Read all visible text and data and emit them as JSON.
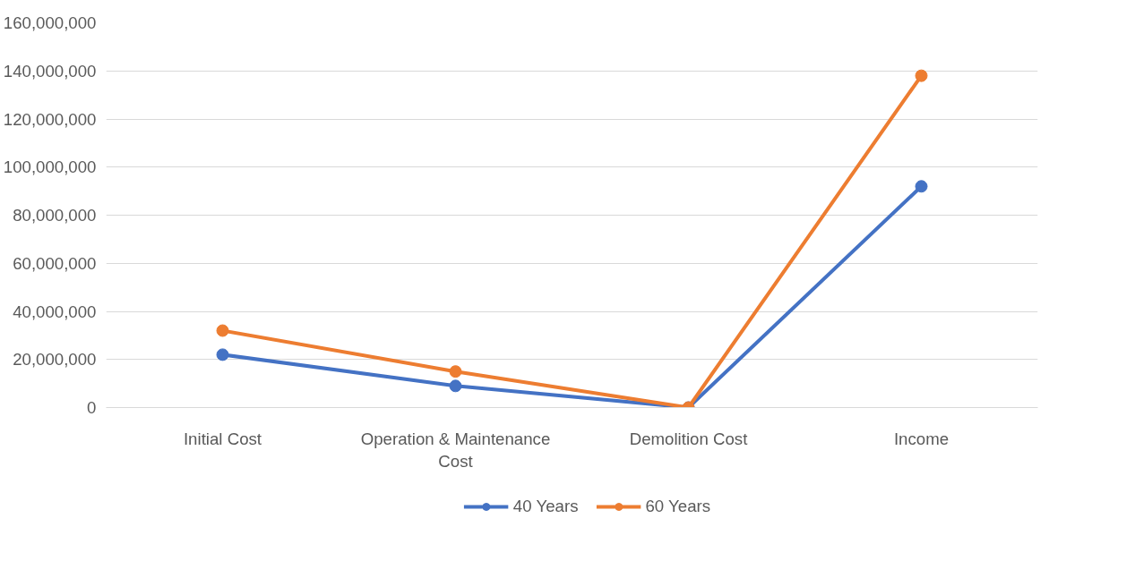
{
  "chart_data": {
    "type": "line",
    "categories": [
      "Initial Cost",
      "Operation & Maintenance Cost",
      "Demolition Cost",
      "Income"
    ],
    "series": [
      {
        "name": "40 Years",
        "color": "#4472c4",
        "values": [
          22000000,
          9000000,
          0,
          92000000
        ]
      },
      {
        "name": "60 Years",
        "color": "#ed7d31",
        "values": [
          32000000,
          15000000,
          0,
          138000000
        ]
      }
    ],
    "ylim": [
      0,
      160000000
    ],
    "yticks": [
      {
        "value": 0,
        "label": "0"
      },
      {
        "value": 20000000,
        "label": "20,000,000"
      },
      {
        "value": 40000000,
        "label": "40,000,000"
      },
      {
        "value": 60000000,
        "label": "60,000,000"
      },
      {
        "value": 80000000,
        "label": "80,000,000"
      },
      {
        "value": 100000000,
        "label": "100,000,000"
      },
      {
        "value": 120000000,
        "label": "120,000,000"
      },
      {
        "value": 140000000,
        "label": "140,000,000"
      },
      {
        "value": 160000000,
        "label": "160,000,000"
      }
    ],
    "grid": "y",
    "legend": "bottom",
    "marker": "circle",
    "line_style": "solid"
  }
}
